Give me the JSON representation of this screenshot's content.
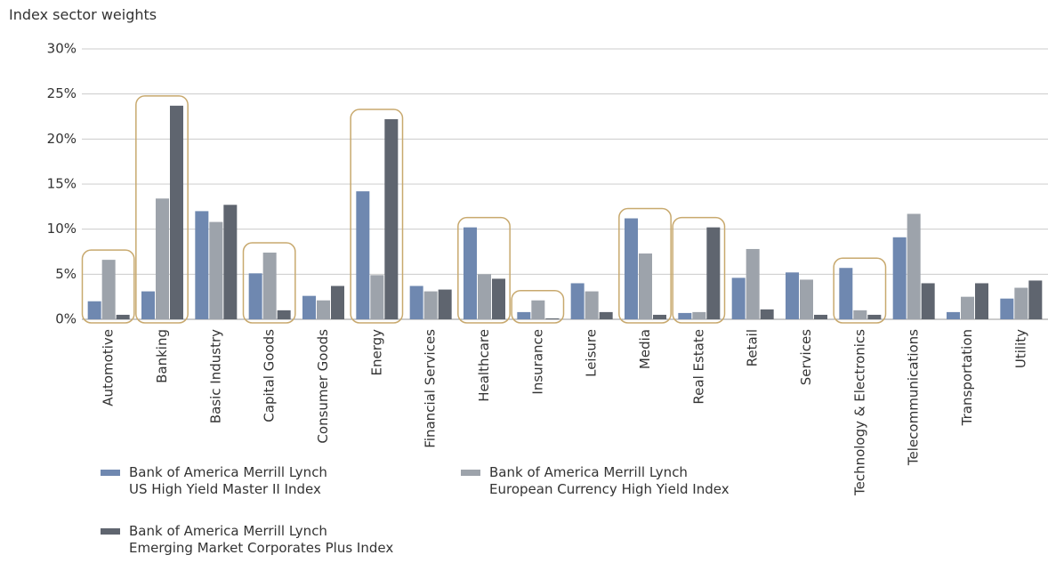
{
  "chart_data": {
    "type": "bar",
    "title": "Index sector weights",
    "categories": [
      "Automotive",
      "Banking",
      "Basic Industry",
      "Capital Goods",
      "Consumer Goods",
      "Energy",
      "Financial Services",
      "Healthcare",
      "Insurance",
      "Leisure",
      "Media",
      "Real Estate",
      "Retail",
      "Services",
      "Technology & Electronics",
      "Telecommunications",
      "Transportation",
      "Utility"
    ],
    "series": [
      {
        "name": "Bank of America Merrill Lynch\nUS High Yield Master II Index",
        "color": "#6f88b0",
        "values": [
          2.0,
          3.1,
          12.0,
          5.1,
          2.6,
          14.2,
          3.7,
          10.2,
          0.8,
          4.0,
          11.2,
          0.7,
          4.6,
          5.2,
          5.7,
          9.1,
          0.8,
          2.3
        ]
      },
      {
        "name": "Bank of America Merrill Lynch\nEuropean Currency High Yield Index",
        "color": "#9da3ab",
        "values": [
          6.6,
          13.4,
          10.8,
          7.4,
          2.1,
          4.9,
          3.1,
          5.0,
          2.1,
          3.1,
          7.3,
          0.8,
          7.8,
          4.4,
          1.0,
          11.7,
          2.5,
          3.5
        ]
      },
      {
        "name": "Bank of America Merrill Lynch\nEmerging Market Corporates Plus Index",
        "color": "#5f656f",
        "values": [
          0.5,
          23.7,
          12.7,
          1.0,
          3.7,
          22.2,
          3.3,
          4.5,
          0.1,
          0.8,
          0.5,
          10.2,
          1.1,
          0.5,
          0.5,
          4.0,
          4.0,
          4.3
        ]
      }
    ],
    "highlighted": [
      0,
      1,
      3,
      5,
      7,
      8,
      10,
      11,
      14
    ],
    "highlight_color": "#c8a96e",
    "ylim": [
      0,
      30
    ],
    "yticks": [
      {
        "value": 0,
        "label": "0%"
      },
      {
        "value": 5,
        "label": "5%"
      },
      {
        "value": 10,
        "label": "10%"
      },
      {
        "value": 15,
        "label": "15%"
      },
      {
        "value": 20,
        "label": "20%"
      },
      {
        "value": 25,
        "label": "25%"
      },
      {
        "value": 30,
        "label": "30%"
      }
    ],
    "grid": true
  }
}
